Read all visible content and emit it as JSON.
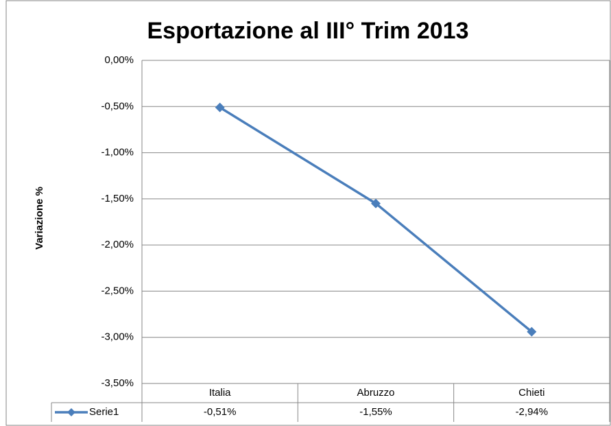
{
  "chart_data": {
    "type": "line",
    "title": "Esportazione al III° Trim 2013",
    "y_label": "Variazione %",
    "categories": [
      "Italia",
      "Abruzzo",
      "Chieti"
    ],
    "series": [
      {
        "name": "Serie1",
        "color": "#4a7ebb",
        "values": [
          -0.51,
          -1.55,
          -2.94
        ],
        "value_labels": [
          "-0,51%",
          "-1,55%",
          "-2,94%"
        ]
      }
    ],
    "ylim": [
      -3.5,
      0
    ],
    "yticks": [
      {
        "value": 0,
        "label": "0,00%"
      },
      {
        "value": -0.5,
        "label": "-0,50%"
      },
      {
        "value": -1,
        "label": "-1,00%"
      },
      {
        "value": -1.5,
        "label": "-1,50%"
      },
      {
        "value": -2,
        "label": "-2,00%"
      },
      {
        "value": -2.5,
        "label": "-2,50%"
      },
      {
        "value": -3,
        "label": "-3,00%"
      },
      {
        "value": -3.5,
        "label": "-3,50%"
      }
    ],
    "grid": true,
    "data_table": true
  }
}
